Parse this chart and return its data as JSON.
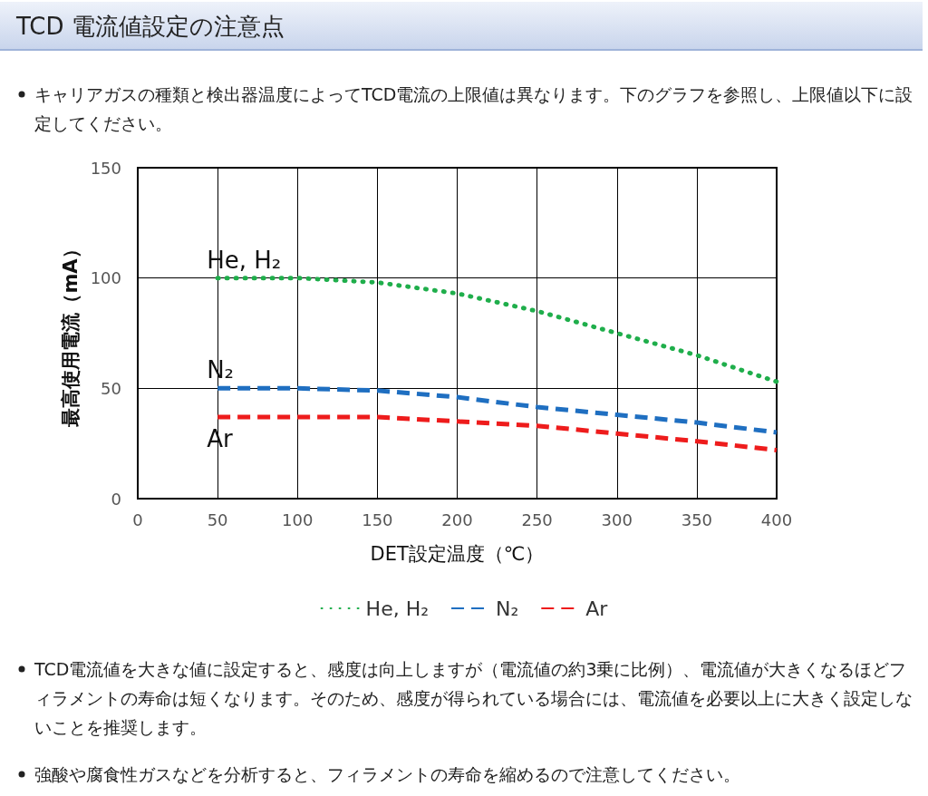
{
  "chart_data": {
    "type": "line",
    "title": "TCD 電流値設定の注意点",
    "subtitle": "キャリアガスの種類と検出器温度によってTCD電流の上限値は異なります。下のグラフを参照し、上限値以下に設定してください。",
    "xlabel": "DET設定温度（℃）",
    "ylabel": "最高使用電流（mA）",
    "x": [
      50,
      100,
      150,
      200,
      250,
      300,
      350,
      400
    ],
    "series": [
      {
        "name": "He, H₂",
        "color": "#1fae4b",
        "line_style": "dotted",
        "values": [
          100,
          100,
          98,
          93,
          85,
          75,
          65,
          53
        ]
      },
      {
        "name": "N₂",
        "color": "#1f6fc1",
        "line_style": "dashed",
        "values": [
          50,
          50,
          49,
          46,
          41.5,
          38,
          34.5,
          30
        ]
      },
      {
        "name": "Ar",
        "color": "#ee1c1c",
        "line_style": "dashed",
        "values": [
          37,
          37,
          37,
          35,
          33,
          29.5,
          26,
          22
        ]
      }
    ],
    "xlim": [
      0,
      400
    ],
    "xticks": [
      0,
      50,
      100,
      150,
      200,
      250,
      300,
      350,
      400
    ],
    "ylim": [
      0,
      150
    ],
    "yticks": [
      0,
      50,
      100,
      150
    ],
    "grid": true,
    "legend": "bottom",
    "marker": "none",
    "annotations": [
      "TCD電流値を大きな値に設定すると、感度は向上しますが（電流値の約3乗に比例）、電流値が大きくなるほどフィラメントの寿命は短くなります。そのため、感度が得られている場合には、電流値を必要以上に大きく設定しないことを推奨します。",
      "強酸や腐食性ガスなどを分析すると、フィラメントの寿命を縮めるので注意してください。"
    ]
  }
}
